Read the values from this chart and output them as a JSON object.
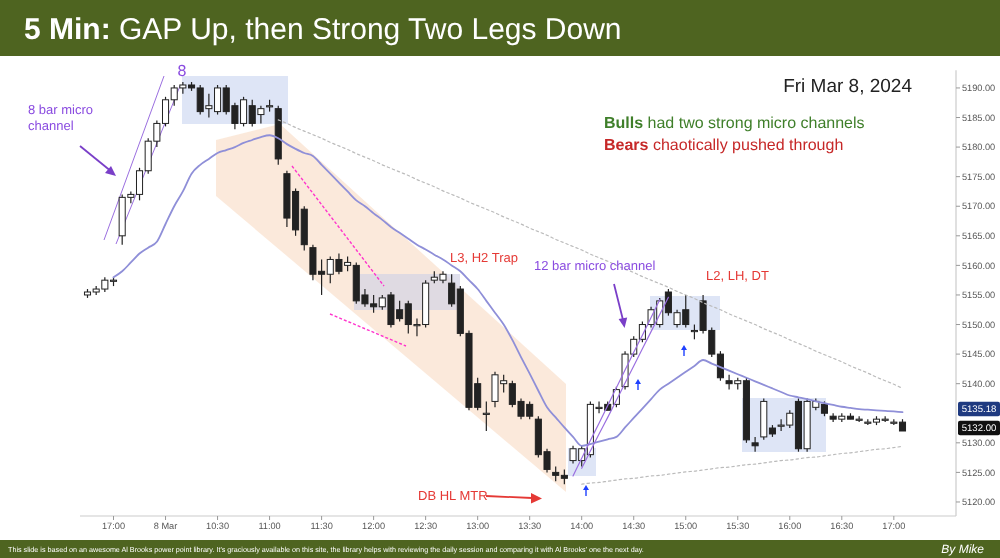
{
  "chart_data": {
    "type": "candlestick",
    "title": "5 Min: GAP Up, then Strong Two Legs Down",
    "categories": [
      null,
      null,
      null,
      "17:00",
      null,
      null,
      null,
      null,
      null,
      "8 Mar",
      null,
      null,
      null,
      null,
      null,
      "10:30",
      null,
      null,
      null,
      null,
      null,
      "11:00",
      null,
      null,
      null,
      null,
      null,
      "11:30",
      null,
      null,
      null,
      null,
      null,
      "12:00",
      null,
      null,
      null,
      null,
      null,
      "12:30",
      null,
      null,
      null,
      null,
      null,
      "13:00",
      null,
      null,
      null,
      null,
      null,
      "13:30",
      null,
      null,
      null,
      null,
      null,
      "14:00",
      null,
      null,
      null,
      null,
      null,
      "14:30",
      null,
      null,
      null,
      null,
      null,
      "15:00",
      null,
      null,
      null,
      null,
      null,
      "15:30",
      null,
      null,
      null,
      null,
      null,
      "16:00",
      null,
      null,
      null,
      null,
      null,
      "16:30",
      null,
      null,
      null,
      null,
      null,
      "17:00",
      null
    ],
    "series": [
      {
        "type": "candlestick",
        "color": "#222222",
        "ohlc": [
          [
            5155,
            5156,
            5154.5,
            5155.5
          ],
          [
            5155.5,
            5156.5,
            5155,
            5156
          ],
          [
            5156,
            5158,
            5155.5,
            5157.5
          ],
          [
            5157.5,
            5158,
            5156.5,
            5157.5
          ],
          [
            5165,
            5172,
            5163.5,
            5171.5
          ],
          [
            5171.5,
            5172.5,
            5170.5,
            5172
          ],
          [
            5172,
            5176.5,
            5171,
            5176
          ],
          [
            5176,
            5181.5,
            5175.5,
            5181
          ],
          [
            5181,
            5184.5,
            5180,
            5184
          ],
          [
            5184,
            5188.5,
            5183.5,
            5188
          ],
          [
            5188,
            5190.5,
            5187,
            5190
          ],
          [
            5190,
            5191,
            5189,
            5190.5
          ],
          [
            5190.5,
            5191,
            5189.5,
            5190
          ],
          [
            5190,
            5190.5,
            5185.5,
            5186
          ],
          [
            5186.5,
            5189,
            5185,
            5187
          ],
          [
            5186,
            5190.5,
            5185.5,
            5190
          ],
          [
            5190,
            5190.5,
            5185.5,
            5186
          ],
          [
            5187,
            5187.5,
            5183,
            5184
          ],
          [
            5184,
            5188.5,
            5183.5,
            5188
          ],
          [
            5187,
            5188,
            5183.5,
            5184
          ],
          [
            5185.5,
            5187,
            5184,
            5186.5
          ],
          [
            5187,
            5188,
            5186,
            5187
          ],
          [
            5186.5,
            5187,
            5177,
            5178
          ],
          [
            5175.5,
            5176,
            5166.5,
            5168
          ],
          [
            5172.5,
            5173,
            5165,
            5166
          ],
          [
            5169.5,
            5170,
            5162.5,
            5163.5
          ],
          [
            5163,
            5163.5,
            5157.5,
            5158.5
          ],
          [
            5159,
            5161,
            5155,
            5158.5
          ],
          [
            5158.5,
            5161.5,
            5157,
            5161
          ],
          [
            5161,
            5162,
            5158.5,
            5159
          ],
          [
            5160,
            5161.5,
            5159,
            5160.5
          ],
          [
            5160,
            5160.5,
            5153.5,
            5154
          ],
          [
            5155,
            5156,
            5153,
            5153.5
          ],
          [
            5153.5,
            5155,
            5152,
            5153
          ],
          [
            5153,
            5155,
            5152.5,
            5154.5
          ],
          [
            5155,
            5155.5,
            5149.5,
            5150
          ],
          [
            5152.5,
            5154,
            5150.5,
            5151
          ],
          [
            5153.5,
            5154,
            5148.5,
            5150
          ],
          [
            5150,
            5151,
            5148,
            5150
          ],
          [
            5150,
            5157.5,
            5149.5,
            5157
          ],
          [
            5157.5,
            5159,
            5157,
            5158
          ],
          [
            5157.5,
            5159,
            5157,
            5158.5
          ],
          [
            5157,
            5158.5,
            5153,
            5153.5
          ],
          [
            5156,
            5156.5,
            5148,
            5148.5
          ],
          [
            5148.5,
            5149,
            5135.5,
            5136
          ],
          [
            5140,
            5141,
            5135.5,
            5136
          ],
          [
            5135,
            5137,
            5132,
            5135
          ],
          [
            5137,
            5142,
            5136,
            5141.5
          ],
          [
            5140,
            5141.5,
            5138.5,
            5140.5
          ],
          [
            5140,
            5140.5,
            5136,
            5136.5
          ],
          [
            5137,
            5137.5,
            5134,
            5134.5
          ],
          [
            5136.5,
            5137,
            5134,
            5134.5
          ],
          [
            5134,
            5134.5,
            5127.5,
            5128
          ],
          [
            5128.5,
            5129,
            5125,
            5125.5
          ],
          [
            5125,
            5126,
            5123.5,
            5124.5
          ],
          [
            5124.5,
            5125.5,
            5123,
            5124
          ],
          [
            5127,
            5129.5,
            5126.5,
            5129
          ],
          [
            5127,
            5129.5,
            5126,
            5129
          ],
          [
            5128,
            5137,
            5127.5,
            5136.5
          ],
          [
            5136,
            5137,
            5135,
            5136
          ],
          [
            5136.5,
            5137,
            5135.5,
            5135.5
          ],
          [
            5136.5,
            5139.5,
            5136,
            5139
          ],
          [
            5139.5,
            5145.5,
            5139,
            5145
          ],
          [
            5145,
            5148,
            5144.5,
            5147.5
          ],
          [
            5147.5,
            5150.5,
            5147,
            5150
          ],
          [
            5150,
            5153,
            5149.5,
            5152.5
          ],
          [
            5150,
            5154.5,
            5149.5,
            5154
          ],
          [
            5155.5,
            5156,
            5151.5,
            5152
          ],
          [
            5150,
            5152.5,
            5149.5,
            5152
          ],
          [
            5152.5,
            5155,
            5149.5,
            5150
          ],
          [
            5149,
            5150,
            5147.5,
            5149
          ],
          [
            5154,
            5155,
            5148.5,
            5149
          ],
          [
            5149,
            5149.5,
            5144.5,
            5145
          ],
          [
            5145,
            5145.5,
            5140.5,
            5141
          ],
          [
            5140.5,
            5141.5,
            5139,
            5140
          ],
          [
            5140,
            5141,
            5139,
            5140.5
          ],
          [
            5140.5,
            5141,
            5130,
            5130.5
          ],
          [
            5130,
            5131,
            5128.5,
            5129.5
          ],
          [
            5131,
            5137.5,
            5130.5,
            5137
          ],
          [
            5132.5,
            5133,
            5131,
            5131.5
          ],
          [
            5133,
            5134,
            5132,
            5133
          ],
          [
            5133,
            5135.5,
            5132.5,
            5135
          ],
          [
            5137,
            5137.5,
            5128.5,
            5129
          ],
          [
            5129,
            5137.5,
            5128.5,
            5137
          ],
          [
            5136,
            5137.5,
            5135.5,
            5137
          ],
          [
            5136.5,
            5137,
            5134.5,
            5135
          ],
          [
            5134.5,
            5135,
            5133.5,
            5134
          ],
          [
            5134,
            5135,
            5133.5,
            5134.5
          ],
          [
            5134.5,
            5135,
            5134,
            5134
          ],
          [
            5134,
            5134.5,
            5133.5,
            5134
          ],
          [
            5133.5,
            5134,
            5133,
            5133.5
          ],
          [
            5133.5,
            5134.5,
            5133,
            5134
          ],
          [
            5134,
            5134.5,
            5133.5,
            5134
          ],
          [
            5133.5,
            5134,
            5133,
            5133.5
          ],
          [
            5133.5,
            5134,
            5132,
            5132
          ]
        ]
      },
      {
        "type": "line",
        "color": "#8f8fd8",
        "values": [
          null,
          null,
          null,
          5158,
          5159,
          5160.5,
          5162,
          5163,
          5164,
          5167,
          5170,
          5172.5,
          5175.5,
          5177,
          5178,
          5179,
          5179.5,
          5180,
          5180.7,
          5181.2,
          5181.7,
          5182,
          5181.5,
          5180.5,
          5179.7,
          5179,
          5178.5,
          5177,
          5175.5,
          5174,
          5172.5,
          5171,
          5170,
          5168.8,
          5167.7,
          5166.5,
          5165.5,
          5164.5,
          5163.5,
          5162.7,
          5161.8,
          5161,
          5160,
          5159,
          5157.5,
          5156,
          5154,
          5152,
          5150,
          5147.4,
          5144.5,
          5141.7,
          5138.8,
          5136,
          5134.3,
          5132.6,
          5131,
          5129.5,
          5129.8,
          5130.2,
          5130.6,
          5131,
          5132.6,
          5134.2,
          5135.8,
          5137.4,
          5139,
          5140,
          5141,
          5142,
          5143,
          5144,
          5143.4,
          5142.8,
          5142.2,
          5141.6,
          5141,
          5140.4,
          5139.8,
          5139.2,
          5138.6,
          5138,
          5137.7,
          5137.4,
          5137,
          5136.7,
          5136.4,
          5136.1,
          5135.9,
          5135.7,
          5135.6,
          5135.5,
          5135.4,
          5135.3,
          5135.2
        ]
      },
      {
        "type": "line",
        "color": "#bbbbbb",
        "line_style": "dotted",
        "values": [
          null,
          null,
          null,
          null,
          null,
          null,
          null,
          null,
          null,
          null,
          null,
          null,
          null,
          null,
          null,
          null,
          null,
          null,
          null,
          null,
          null,
          null,
          5184.6,
          5184.0,
          5183.3,
          5182.7,
          5182.1,
          5181.5,
          5180.8,
          5180.2,
          5179.6,
          5178.9,
          5178.3,
          5177.7,
          5177.0,
          5176.4,
          5175.8,
          5175.2,
          5174.5,
          5173.9,
          5173.3,
          5172.6,
          5172.0,
          5171.4,
          5170.7,
          5170.1,
          5169.5,
          5168.9,
          5168.2,
          5167.6,
          5167.0,
          5166.3,
          5165.7,
          5165.1,
          5164.4,
          5163.8,
          5163.2,
          5162.6,
          5161.9,
          5161.3,
          5160.7,
          5160.0,
          5159.4,
          5158.8,
          5158.1,
          5157.5,
          5156.9,
          5156.3,
          5155.6,
          5155.0,
          5154.4,
          5153.7,
          5153.1,
          5152.5,
          5151.8,
          5151.2,
          5150.6,
          5150.0,
          5149.3,
          5148.7,
          5148.1,
          5147.4,
          5146.8,
          5146.2,
          5145.5,
          5144.9,
          5144.3,
          5143.7,
          5143.0,
          5142.4,
          5141.8,
          5141.1,
          5140.5,
          5139.9,
          5139.2
        ]
      },
      {
        "type": "line",
        "color": "#bbbbbb",
        "line_style": "dotted",
        "values": [
          null,
          null,
          null,
          null,
          null,
          null,
          null,
          null,
          null,
          null,
          null,
          null,
          null,
          null,
          null,
          null,
          null,
          null,
          null,
          null,
          null,
          null,
          null,
          null,
          null,
          null,
          null,
          null,
          null,
          null,
          null,
          null,
          null,
          null,
          null,
          null,
          null,
          null,
          null,
          null,
          null,
          null,
          null,
          null,
          null,
          null,
          null,
          null,
          null,
          null,
          null,
          null,
          null,
          null,
          null,
          null,
          null,
          5123.0,
          5123.2,
          5123.3,
          5123.5,
          5123.7,
          5123.9,
          5124.0,
          5124.2,
          5124.4,
          5124.5,
          5124.7,
          5124.9,
          5125.1,
          5125.2,
          5125.4,
          5125.6,
          5125.8,
          5125.9,
          5126.1,
          5126.3,
          5126.4,
          5126.6,
          5126.8,
          5127.0,
          5127.1,
          5127.3,
          5127.5,
          5127.6,
          5127.8,
          5128.0,
          5128.2,
          5128.3,
          5128.5,
          5128.7,
          5128.9,
          5129.0,
          5129.2,
          5129.4
        ]
      },
      {
        "type": "line",
        "color": "#9b6fe0",
        "line_style": "solid",
        "values": [
          null,
          null,
          null,
          null,
          null,
          null,
          null,
          null,
          null,
          null,
          null,
          null,
          null,
          null,
          null,
          null,
          null,
          null,
          null,
          null,
          null,
          null,
          null,
          null,
          null,
          null,
          null,
          null,
          null,
          null,
          null,
          null,
          null,
          null,
          null,
          null,
          null,
          null,
          null,
          null,
          null,
          null,
          null,
          null,
          null,
          null,
          null,
          null,
          null,
          null,
          null,
          null,
          null,
          null,
          null,
          null,
          5124.4,
          5127.4,
          5130.4,
          5133.3,
          5136.3,
          5139.3,
          5142.3,
          5145.3,
          5148.2,
          5151.2,
          5154.2,
          null,
          null,
          null,
          null,
          null,
          null,
          null,
          null,
          null,
          null,
          null,
          null,
          null,
          null,
          null,
          null,
          null,
          null,
          null,
          null,
          null,
          null,
          null,
          null,
          null,
          null,
          null,
          null
        ]
      },
      {
        "type": "line",
        "color": "#9b6fe0",
        "line_style": "solid",
        "values": [
          null,
          null,
          null,
          null,
          null,
          null,
          null,
          null,
          null,
          null,
          null,
          null,
          null,
          null,
          null,
          null,
          null,
          null,
          null,
          null,
          null,
          null,
          null,
          null,
          null,
          null,
          null,
          null,
          null,
          null,
          null,
          null,
          null,
          null,
          null,
          null,
          null,
          null,
          null,
          null,
          null,
          null,
          null,
          null,
          null,
          null,
          null,
          null,
          null,
          null,
          null,
          null,
          null,
          null,
          null,
          null,
          null,
          5125.7,
          5128.6,
          5131.5,
          5134.3,
          5137.2,
          5140.1,
          5143.0,
          5145.9,
          5148.8,
          5151.7,
          5154.6,
          null,
          null,
          null,
          null,
          null,
          null,
          null,
          null,
          null,
          null,
          null,
          null,
          null,
          null,
          null,
          null,
          null,
          null,
          null,
          null,
          null,
          null,
          null,
          null,
          null,
          null,
          null
        ]
      }
    ],
    "ylim": [
      5118,
      5193
    ],
    "yticks": [
      {
        "value": 5120,
        "label": "5120.00"
      },
      {
        "value": 5125,
        "label": "5125.00"
      },
      {
        "value": 5130,
        "label": "5130.00"
      },
      {
        "value": 5140,
        "label": "5140.00"
      },
      {
        "value": 5145,
        "label": "5145.00"
      },
      {
        "value": 5150,
        "label": "5150.00"
      },
      {
        "value": 5155,
        "label": "5155.00"
      },
      {
        "value": 5160,
        "label": "5160.00"
      },
      {
        "value": 5165,
        "label": "5165.00"
      },
      {
        "value": 5170,
        "label": "5170.00"
      },
      {
        "value": 5175,
        "label": "5175.00"
      },
      {
        "value": 5180,
        "label": "5180.00"
      },
      {
        "value": 5185,
        "label": "5185.00"
      },
      {
        "value": 5190,
        "label": "5190.00"
      }
    ],
    "annotations": [
      "Fri Mar 8, 2024",
      "Bulls had two strong micro channels",
      "Bears chaotically pushed through",
      "8 bar micro channel",
      "8",
      "L3, H2 Trap",
      "12 bar micro channel",
      "L2, LH, DT",
      "DB HL MTR",
      "5135.18",
      "5132.00",
      "This slide is based on an awesome Al Brooks power point library. It's graciously available on this site, the library helps with reviewing the daily session and comparing it with Al Brooks' one the next day.",
      "By Mike"
    ]
  }
}
